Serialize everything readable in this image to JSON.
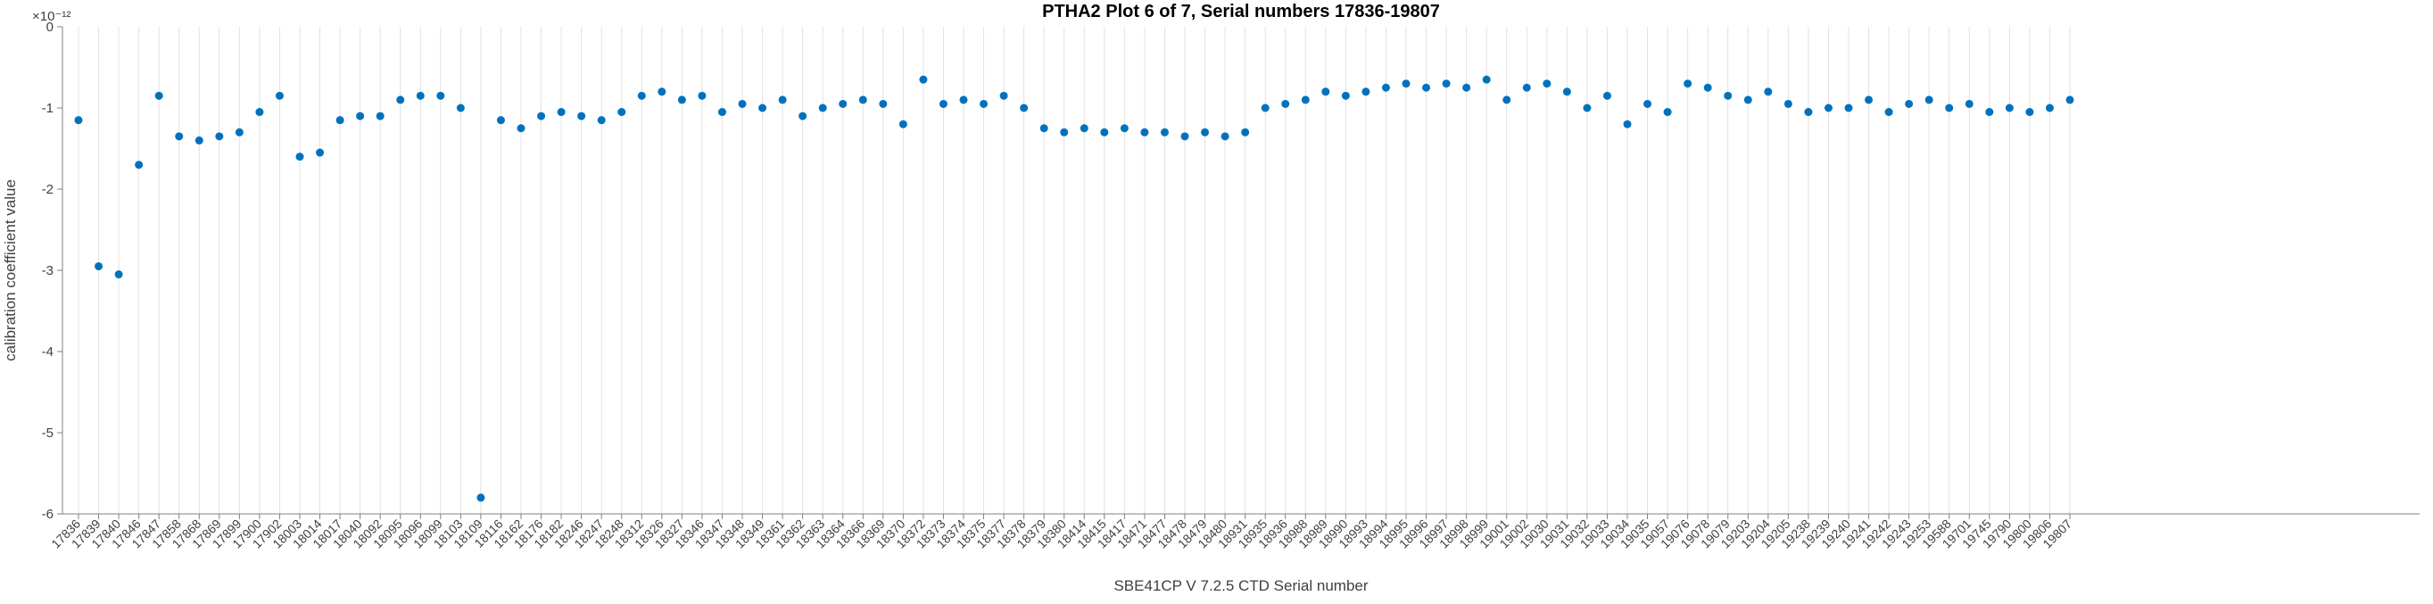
{
  "figure": {
    "title": "PTHA2 Plot 6 of 7, Serial numbers 17836-19807"
  },
  "chart_data": {
    "type": "scatter",
    "title": "PTHA2 Plot 6 of 7, Serial numbers 17836-19807",
    "xlabel": "SBE41CP V 7.2.5 CTD Serial number",
    "ylabel": "calibration coefficient value",
    "y_axis_multiplier": "×10⁻¹²",
    "value_scale": "1e-12",
    "ylim": [
      -6,
      0
    ],
    "yticks": [
      0,
      -1,
      -2,
      -3,
      -4,
      -5,
      -6
    ],
    "x_grid": true,
    "y_grid": false,
    "marker_color": "#0072BD",
    "grid_color": "#e2e2e2",
    "axis_color": "#808080",
    "text_color": "#404040",
    "categories": [
      "17836",
      "17839",
      "17840",
      "17846",
      "17847",
      "17858",
      "17868",
      "17869",
      "17899",
      "17900",
      "17902",
      "18003",
      "18014",
      "18017",
      "18040",
      "18092",
      "18095",
      "18096",
      "18099",
      "18103",
      "18109",
      "18116",
      "18162",
      "18176",
      "18182",
      "18246",
      "18247",
      "18248",
      "18312",
      "18326",
      "18327",
      "18346",
      "18347",
      "18348",
      "18349",
      "18361",
      "18362",
      "18363",
      "18364",
      "18366",
      "18369",
      "18370",
      "18372",
      "18373",
      "18374",
      "18375",
      "18377",
      "18378",
      "18379",
      "18380",
      "18414",
      "18415",
      "18417",
      "18471",
      "18477",
      "18478",
      "18479",
      "18480",
      "18931",
      "18935",
      "18936",
      "18988",
      "18989",
      "18990",
      "18993",
      "18994",
      "18995",
      "18996",
      "18997",
      "18998",
      "18999",
      "19001",
      "19002",
      "19030",
      "19031",
      "19032",
      "19033",
      "19034",
      "19035",
      "19057",
      "19076",
      "19078",
      "19079",
      "19203",
      "19204",
      "19205",
      "19238",
      "19239",
      "19240",
      "19241",
      "19242",
      "19243",
      "19253",
      "19588",
      "19701",
      "19745",
      "19790",
      "19800",
      "19806",
      "19807"
    ],
    "values": [
      -1.15,
      -2.95,
      -3.05,
      -1.7,
      -0.85,
      -1.35,
      -1.4,
      -1.35,
      -1.3,
      -1.05,
      -0.85,
      -1.6,
      -1.55,
      -1.15,
      -1.1,
      -1.1,
      -0.9,
      -0.85,
      -0.85,
      -1.0,
      -5.8,
      -1.15,
      -1.25,
      -1.1,
      -1.05,
      -1.1,
      -1.15,
      -1.05,
      -0.85,
      -0.8,
      -0.9,
      -0.85,
      -1.05,
      -0.95,
      -1.0,
      -0.9,
      -1.1,
      -1.0,
      -0.95,
      -0.9,
      -0.95,
      -1.2,
      -0.65,
      -0.95,
      -0.9,
      -0.95,
      -0.85,
      -1.0,
      -1.25,
      -1.3,
      -1.25,
      -1.3,
      -1.25,
      -1.3,
      -1.3,
      -1.35,
      -1.3,
      -1.35,
      -1.3,
      -1.0,
      -0.95,
      -0.9,
      -0.8,
      -0.85,
      -0.8,
      -0.75,
      -0.7,
      -0.75,
      -0.7,
      -0.75,
      -0.65,
      -0.9,
      -0.75,
      -0.7,
      -0.8,
      -1.0,
      -0.85,
      -1.2,
      -0.95,
      -1.05,
      -0.7,
      -0.75,
      -0.85,
      -0.9,
      -0.8,
      -0.95,
      -1.05,
      -1.0,
      -1.0,
      -0.9,
      -1.05,
      -0.95,
      -0.9,
      -1.0,
      -0.95,
      -1.05,
      -1.0,
      -1.05,
      -1.0,
      -0.9
    ]
  }
}
